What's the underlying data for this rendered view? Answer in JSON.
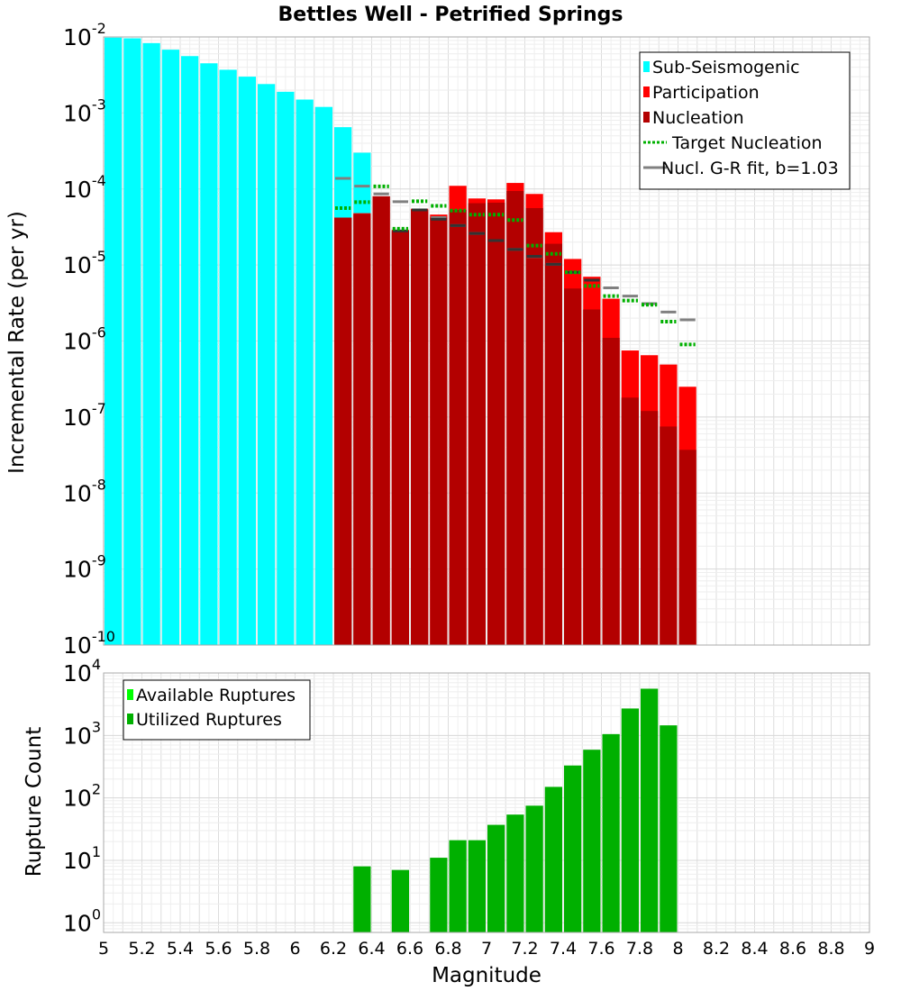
{
  "chart_data": [
    {
      "type": "bar",
      "title": "Bettles Well - Petrified Springs",
      "xlabel": "",
      "ylabel": "Incremental Rate (per yr)",
      "y_scale": "log",
      "xlim": [
        5,
        9
      ],
      "ylim": [
        1e-10,
        0.01
      ],
      "y_ticks": [
        {
          "base": "10",
          "exp": "-10"
        },
        {
          "base": "10",
          "exp": "-9"
        },
        {
          "base": "10",
          "exp": "-8"
        },
        {
          "base": "10",
          "exp": "-7"
        },
        {
          "base": "10",
          "exp": "-6"
        },
        {
          "base": "10",
          "exp": "-5"
        },
        {
          "base": "10",
          "exp": "-4"
        },
        {
          "base": "10",
          "exp": "-3"
        },
        {
          "base": "10",
          "exp": "-2"
        }
      ],
      "bar_width": 0.1,
      "grid": true,
      "legend_position": "top-right",
      "legend": [
        {
          "label": "Sub-Seismogenic",
          "style": "box",
          "color": "#00ffff"
        },
        {
          "label": "Participation",
          "style": "box",
          "color": "#ff0000"
        },
        {
          "label": "Nucleation",
          "style": "box",
          "color": "#b30000"
        },
        {
          "label": "Target Nucleation",
          "style": "dotted",
          "color": "#00b000"
        },
        {
          "label": "Nucl. G-R fit, b=1.03",
          "style": "solid",
          "color": "#808080"
        }
      ],
      "series": [
        {
          "name": "Sub-Seismogenic",
          "color": "#00ffff",
          "x": [
            5.05,
            5.15,
            5.25,
            5.35,
            5.45,
            5.55,
            5.65,
            5.75,
            5.85,
            5.95,
            6.05,
            6.15,
            6.25,
            6.35
          ],
          "values": [
            0.0098,
            0.0096,
            0.0083,
            0.0068,
            0.0056,
            0.0045,
            0.0037,
            0.003,
            0.0024,
            0.0019,
            0.0015,
            0.0012,
            0.00065,
            0.0003
          ]
        },
        {
          "name": "Participation",
          "color": "#ff0000",
          "x": [
            6.25,
            6.35,
            6.45,
            6.55,
            6.65,
            6.75,
            6.85,
            6.95,
            7.05,
            7.15,
            7.25,
            7.35,
            7.45,
            7.55,
            7.65,
            7.75,
            7.85,
            7.95,
            8.05
          ],
          "values": [
            4.2e-05,
            4.8e-05,
            8e-05,
            2.9e-05,
            5.5e-05,
            4.6e-05,
            0.00011,
            7.5e-05,
            7.3e-05,
            0.00012,
            8.6e-05,
            2.7e-05,
            1.2e-05,
            7e-06,
            3.6e-06,
            7.5e-07,
            6.5e-07,
            4.9e-07,
            2.5e-07
          ]
        },
        {
          "name": "Nucleation",
          "color": "#b30000",
          "x": [
            6.25,
            6.35,
            6.45,
            6.55,
            6.65,
            6.75,
            6.85,
            6.95,
            7.05,
            7.15,
            7.25,
            7.35,
            7.45,
            7.55,
            7.65,
            7.75,
            7.85,
            7.95,
            8.05
          ],
          "values": [
            4.2e-05,
            4.7e-05,
            8e-05,
            2.8e-05,
            5.3e-05,
            4.2e-05,
            5.3e-05,
            6.5e-05,
            6.6e-05,
            9.4e-05,
            5.6e-05,
            1.9e-05,
            4.9e-06,
            2.6e-06,
            1.1e-06,
            1.8e-07,
            1.2e-07,
            7.5e-08,
            3.7e-08
          ]
        },
        {
          "name": "Target Nucleation",
          "color": "#00b000",
          "x": [
            6.25,
            6.35,
            6.45,
            6.55,
            6.65,
            6.75,
            6.85,
            6.95,
            7.05,
            7.15,
            7.25,
            7.35,
            7.45,
            7.55,
            7.65,
            7.75,
            7.85,
            7.95,
            8.05
          ],
          "values": [
            5.6e-05,
            6.7e-05,
            0.000108,
            3e-05,
            6.9e-05,
            6e-05,
            5.2e-05,
            4.6e-05,
            4.6e-05,
            3.9e-05,
            1.8e-05,
            1.4e-05,
            8e-06,
            5.3e-06,
            3.9e-06,
            3.4e-06,
            3e-06,
            1.8e-06,
            9e-07
          ]
        },
        {
          "name": "Nucl. G-R fit, b=1.03",
          "color": "#808080",
          "x": [
            6.25,
            6.35,
            6.45,
            6.55,
            6.65,
            6.75,
            6.85,
            6.95,
            7.05,
            7.15,
            7.25,
            7.35,
            7.45,
            7.55,
            7.65,
            7.75,
            7.85,
            7.95,
            8.05
          ],
          "values": [
            0.000138,
            0.000109,
            8.6e-05,
            6.8e-05,
            5.3e-05,
            4.2e-05,
            3.3e-05,
            2.6e-05,
            2.1e-05,
            1.6e-05,
            1.29e-05,
            1.02e-05,
            8e-06,
            6.3e-06,
            5e-06,
            3.9e-06,
            3.1e-06,
            2.4e-06,
            1.9e-06
          ]
        },
        {
          "name": "G-R fit (dark)",
          "color": "#333333",
          "x": [
            6.55,
            6.65,
            6.75,
            6.85,
            6.95,
            7.05,
            7.15,
            7.25,
            7.35,
            7.45,
            7.55
          ],
          "values": [
            2.8e-05,
            5.3e-05,
            4e-05,
            3.3e-05,
            2.6e-05,
            2.1e-05,
            1.6e-05,
            1.3e-05,
            1.02e-05,
            8e-06,
            6.3e-06
          ]
        }
      ]
    },
    {
      "type": "bar",
      "title": "",
      "xlabel": "Magnitude",
      "ylabel": "Rupture Count",
      "y_scale": "log",
      "xlim": [
        5,
        9
      ],
      "ylim": [
        0.7,
        10000
      ],
      "y_ticks": [
        {
          "value": 1,
          "base": "10",
          "exp": "0"
        },
        {
          "value": 10,
          "base": "10",
          "exp": "1"
        },
        {
          "value": 100,
          "base": "10",
          "exp": "2"
        },
        {
          "value": 1000,
          "base": "10",
          "exp": "3"
        },
        {
          "value": 10000,
          "base": "10",
          "exp": "4"
        }
      ],
      "x_ticks": [
        "5",
        "5.2",
        "5.4",
        "5.6",
        "5.8",
        "6",
        "6.2",
        "6.4",
        "6.6",
        "6.8",
        "7",
        "7.2",
        "7.4",
        "7.6",
        "7.8",
        "8",
        "8.2",
        "8.4",
        "8.6",
        "8.8",
        "9"
      ],
      "bar_width": 0.1,
      "grid": true,
      "legend_position": "top-left",
      "legend": [
        {
          "label": "Available Ruptures",
          "style": "box",
          "color": "#00ff00"
        },
        {
          "label": "Utilized Ruptures",
          "style": "box",
          "color": "#00b000"
        }
      ],
      "series": [
        {
          "name": "Utilized Ruptures",
          "color": "#00b000",
          "x": [
            6.35,
            6.55,
            6.75,
            6.85,
            6.95,
            7.05,
            7.15,
            7.25,
            7.35,
            7.45,
            7.55,
            7.65,
            7.75,
            7.85,
            7.95
          ],
          "values": [
            8,
            7,
            11,
            21,
            21,
            37,
            54,
            75,
            150,
            330,
            590,
            1050,
            2700,
            5600,
            1450
          ]
        }
      ]
    }
  ]
}
